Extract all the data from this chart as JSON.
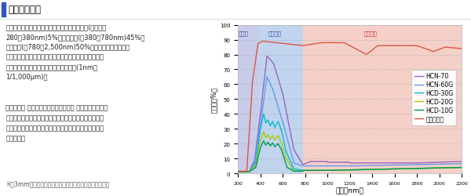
{
  "title": "光学チャート",
  "xlabel": "波長（nm）",
  "ylabel": "透過率（%）",
  "xmin": 200,
  "xmax": 2200,
  "ymin": 0,
  "ymax": 100,
  "uv_label": "紫外線",
  "vis_label": "可視光線",
  "nir_label": "近赤外線",
  "uv_color": "#c8cce8",
  "vis_color": "#c0d4ee",
  "nir_color": "#f5d0c8",
  "legend_labels": [
    "HCN-70",
    "HCN-60G",
    "HCD-30G",
    "HCD-20G",
    "HCD-10G",
    "ガラス単体"
  ],
  "line_colors": [
    "#9966bb",
    "#6699ee",
    "#00bbcc",
    "#aacc00",
    "#009955",
    "#dd5544"
  ],
  "background_color": "#ffffff",
  "panel_color": "#f9f9f9",
  "text1": "太陽光線のエネルギー比率は、おおよそ紫外線(波長領域\n280～380nm)5%、可視光線(同380～780nm)45%、\n近赤外線(同780～2,500nm)50%となっており、一般に\nウインドーフィルムは、可視光線や赤外線を大きくカッ\nトすることで高い断熱効果が得られます(1nm＝\n1/1,000µm)。",
  "text2": "ウインコス オートモーティブフィルム プレミアムシリー\nズは、目に見えない赤外線域を中心に日射をカットする\nことで、車内からの高い視認性と優れた断熱性を両立し\nています。",
  "text3": "※　3mmフロートガラスにフィルムを貼付した時の実測値",
  "title_bar_color": "#3355bb"
}
